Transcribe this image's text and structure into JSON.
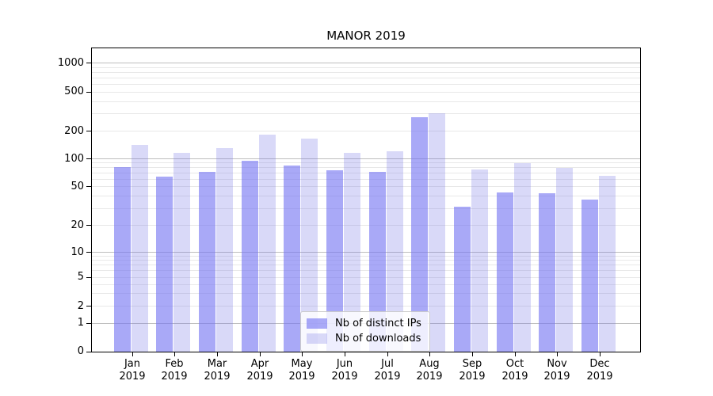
{
  "chart_data": {
    "type": "bar",
    "title": "MANOR 2019",
    "categories": [
      "Jan",
      "Feb",
      "Mar",
      "Apr",
      "May",
      "Jun",
      "Jul",
      "Aug",
      "Sep",
      "Oct",
      "Nov",
      "Dec"
    ],
    "category_year": "2019",
    "series": [
      {
        "name": "Nb of distinct IPs",
        "fill": "rgba(117,117,242,0.62)",
        "swatch_hex": "#a9a9f8",
        "values": [
          82,
          64,
          73,
          96,
          84,
          75,
          72,
          275,
          31,
          44,
          43,
          37
        ]
      },
      {
        "name": "Nb of downloads",
        "fill": "rgba(119,119,230,0.28)",
        "swatch_hex": "#d9d9f8",
        "values": [
          143,
          116,
          130,
          185,
          165,
          117,
          120,
          305,
          77,
          90,
          80,
          65
        ]
      }
    ],
    "y_axis": {
      "scale": "symlog",
      "tick_labels": [
        "0",
        "1",
        "2",
        "5",
        "10",
        "20",
        "50",
        "100",
        "200",
        "500",
        "1000"
      ],
      "ticks": [
        {
          "v": 0,
          "f": 0.0
        },
        {
          "v": 1,
          "f": 0.0935
        },
        {
          "v": 2,
          "f": 0.15
        },
        {
          "v": 5,
          "f": 0.245
        },
        {
          "v": 10,
          "f": 0.327
        },
        {
          "v": 20,
          "f": 0.4156
        },
        {
          "v": 50,
          "f": 0.544
        },
        {
          "v": 100,
          "f": 0.6356
        },
        {
          "v": 200,
          "f": 0.727
        },
        {
          "v": 500,
          "f": 0.856
        },
        {
          "v": 1000,
          "f": 0.951
        }
      ]
    },
    "grid": {
      "show": true,
      "major_values": [
        1,
        10,
        100,
        1000
      ],
      "minor_values": [
        2,
        3,
        4,
        5,
        6,
        7,
        8,
        9,
        20,
        30,
        40,
        50,
        60,
        70,
        80,
        90,
        200,
        300,
        400,
        500,
        600,
        700,
        800,
        900
      ],
      "major_color": "#bdbdbd",
      "minor_color": "#e8e8e8"
    },
    "legend": {
      "position": "lower-center-inside"
    }
  }
}
